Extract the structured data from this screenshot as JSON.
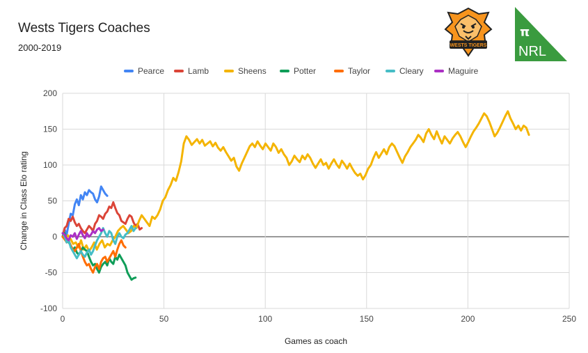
{
  "header": {
    "title": "Wests Tigers Coaches",
    "subtitle": "2000-2019",
    "nrl_logo_symbol": "π",
    "nrl_logo_text": "NRL",
    "nrl_logo_color": "#3a9b3f",
    "tigers_logo_text": "WESTS TIGERS"
  },
  "chart_data": {
    "type": "line",
    "title": "Wests Tigers Coaches",
    "subtitle": "2000-2019",
    "xlabel": "Games as coach",
    "ylabel": "Change in Class Elo rating",
    "xlim": [
      0,
      250
    ],
    "ylim": [
      -100,
      200
    ],
    "xticks": [
      0,
      50,
      100,
      150,
      200,
      250
    ],
    "yticks": [
      -100,
      -50,
      0,
      50,
      100,
      150,
      200
    ],
    "grid": true,
    "legend_position": "top",
    "series": [
      {
        "name": "Pearce",
        "color": "#4285f4",
        "values": [
          0,
          10,
          3,
          18,
          32,
          30,
          45,
          52,
          44,
          58,
          52,
          62,
          58,
          65,
          62,
          60,
          52,
          48,
          56,
          70,
          65,
          60,
          57
        ]
      },
      {
        "name": "Lamb",
        "color": "#db4437",
        "values": [
          0,
          12,
          15,
          25,
          22,
          28,
          20,
          15,
          18,
          12,
          8,
          5,
          10,
          15,
          12,
          8,
          18,
          22,
          30,
          28,
          25,
          32,
          35,
          42,
          40,
          48,
          40,
          33,
          30,
          22,
          20,
          18,
          25,
          30,
          28,
          20,
          15,
          18,
          10,
          12
        ]
      },
      {
        "name": "Sheens",
        "color": "#f4b400",
        "values": [
          0,
          -5,
          2,
          -3,
          -10,
          -8,
          -15,
          -5,
          -18,
          -12,
          -20,
          -15,
          -8,
          -18,
          -10,
          -5,
          -15,
          -10,
          -12,
          -5,
          0,
          8,
          12,
          15,
          10,
          5,
          8,
          15,
          12,
          22,
          30,
          25,
          20,
          15,
          28,
          25,
          30,
          38,
          50,
          55,
          65,
          72,
          82,
          78,
          90,
          105,
          130,
          140,
          135,
          128,
          132,
          136,
          130,
          135,
          127,
          130,
          133,
          126,
          131,
          124,
          120,
          125,
          118,
          112,
          106,
          110,
          98,
          92,
          102,
          110,
          118,
          126,
          130,
          125,
          133,
          127,
          122,
          130,
          125,
          120,
          130,
          125,
          117,
          122,
          115,
          110,
          100,
          105,
          113,
          108,
          104,
          113,
          108,
          115,
          110,
          102,
          96,
          102,
          108,
          100,
          103,
          95,
          102,
          108,
          101,
          96,
          106,
          101,
          95,
          102,
          95,
          89,
          85,
          88,
          80,
          86,
          95,
          100,
          110,
          118,
          110,
          116,
          122,
          115,
          125,
          130,
          126,
          118,
          110,
          103,
          112,
          118,
          125,
          130,
          135,
          142,
          138,
          132,
          144,
          150,
          142,
          136,
          147,
          138,
          130,
          140,
          135,
          130,
          137,
          142,
          146,
          140,
          132,
          125,
          132,
          140,
          147,
          152,
          158,
          165,
          172,
          168,
          160,
          150,
          140,
          145,
          152,
          160,
          168,
          175,
          165,
          158,
          150,
          155,
          148,
          155,
          152,
          142
        ],
        "x_step": 1.3
      },
      {
        "name": "Potter",
        "color": "#0f9d58",
        "values": [
          0,
          5,
          -3,
          -8,
          -12,
          -18,
          -15,
          -22,
          -25,
          -20,
          -15,
          -18,
          -20,
          -28,
          -35,
          -40,
          -38,
          -45,
          -50,
          -42,
          -38,
          -35,
          -40,
          -30,
          -35,
          -38,
          -28,
          -32,
          -25,
          -30,
          -35,
          -40,
          -50,
          -55,
          -60,
          -58,
          -57
        ]
      },
      {
        "name": "Taylor",
        "color": "#ff6d00",
        "values": [
          0,
          -3,
          -8,
          -5,
          -12,
          -18,
          -20,
          -15,
          -10,
          -20,
          -28,
          -35,
          -40,
          -38,
          -45,
          -50,
          -42,
          -38,
          -45,
          -35,
          -30,
          -28,
          -35,
          -30,
          -25,
          -20,
          -28,
          -18,
          -10,
          -5,
          -12,
          -15
        ]
      },
      {
        "name": "Cleary",
        "color": "#46bdc6",
        "values": [
          5,
          0,
          -8,
          -5,
          -15,
          -20,
          -25,
          -30,
          -25,
          -20,
          -25,
          -28,
          -22,
          -18,
          -25,
          -20,
          -12,
          -5,
          0,
          5,
          12,
          5,
          0,
          8,
          5,
          -5,
          -10,
          0,
          5,
          0,
          -2,
          3,
          5,
          10,
          15,
          8,
          12
        ]
      },
      {
        "name": "Maguire",
        "color": "#ab30c4",
        "values": [
          5,
          3,
          -2,
          -5,
          2,
          0,
          5,
          -3,
          3,
          8,
          2,
          -2,
          5,
          0,
          3,
          8,
          5,
          10,
          12,
          8,
          10
        ]
      }
    ]
  }
}
